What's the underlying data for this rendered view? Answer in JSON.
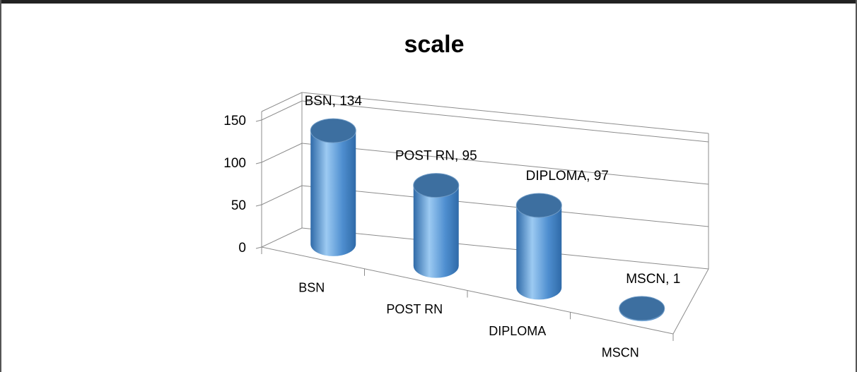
{
  "chart_data": {
    "type": "bar",
    "style": "3d-cylinder",
    "title": "scale",
    "categories": [
      "BSN",
      "POST RN",
      "DIPLOMA",
      "MSCN"
    ],
    "values": [
      134,
      95,
      97,
      1
    ],
    "data_labels": [
      "BSN, 134",
      "POST RN, 95",
      "DIPLOMA, 97",
      "MSCN, 1"
    ],
    "ylim": [
      0,
      150
    ],
    "yticks": [
      0,
      50,
      100,
      150
    ],
    "grid": true,
    "colors": {
      "bar": "#4f8fd0",
      "bar_light": "#9ccaf2",
      "bar_dark": "#2f6aa8",
      "bar_top": "#3d6fa0",
      "grid": "#8c8c8c"
    }
  }
}
